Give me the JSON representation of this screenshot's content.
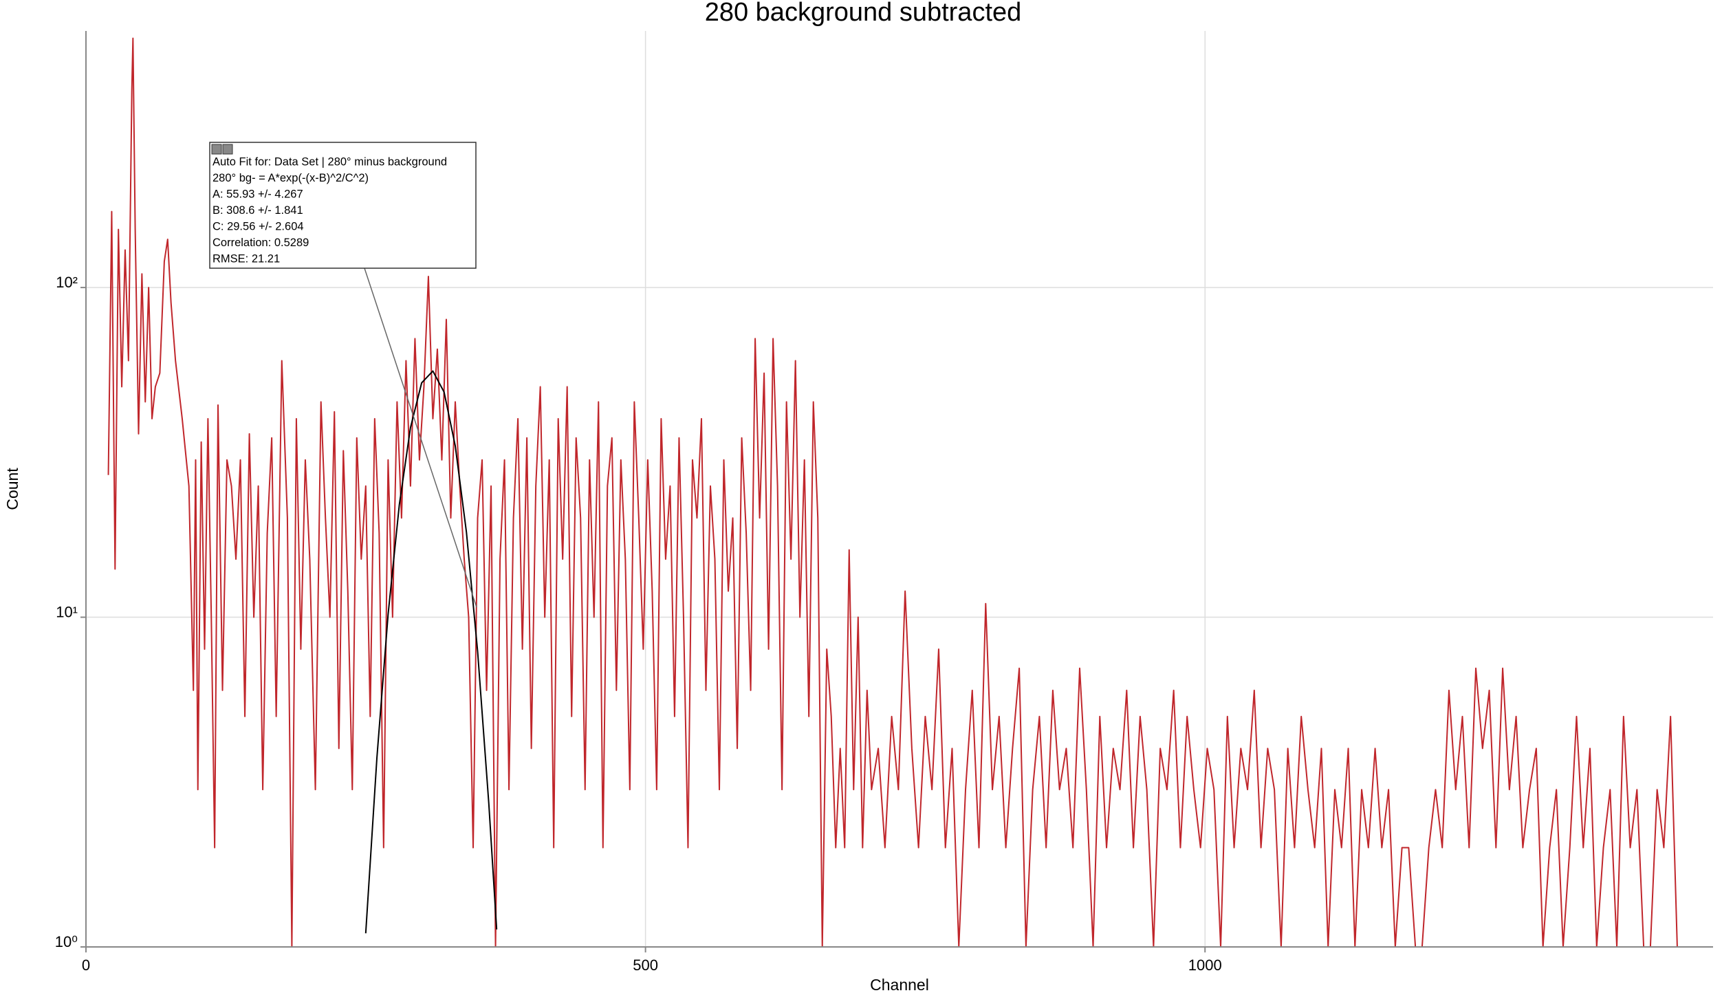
{
  "chart_data": {
    "type": "line",
    "title": "280 background subtracted",
    "x_label": "Channel",
    "y_label": "Count",
    "log_y": true,
    "grid": true,
    "xlim": [
      0,
      1454
    ],
    "xticks": [
      0,
      500,
      1000
    ],
    "ylim": [
      1,
      600
    ],
    "yticks": [
      {
        "value": 1,
        "label": "10⁰"
      },
      {
        "value": 10,
        "label": "10¹"
      },
      {
        "value": 100,
        "label": "10²"
      }
    ],
    "annotations": [
      "Auto Fit for: Data Set | 280° minus background",
      "280° bg- = A*exp(-(x-B)^2/C^2)",
      "A: 55.93 +/- 4.267",
      "B: 308.6 +/- 1.841",
      "C: 29.56 +/- 2.604",
      "Correlation: 0.5289",
      "RMSE: 21.21"
    ],
    "series": [
      {
        "color": "#c0262b",
        "x": [
          20,
          23,
          26,
          29,
          32,
          35,
          38,
          41,
          42,
          44,
          47,
          50,
          53,
          56,
          59,
          62,
          66,
          70,
          73,
          76,
          80,
          86,
          92,
          96,
          98,
          100,
          103,
          106,
          109,
          112,
          115,
          118,
          122,
          126,
          130,
          134,
          138,
          142,
          146,
          150,
          154,
          158,
          162,
          166,
          170,
          175,
          180,
          184,
          188,
          192,
          196,
          200,
          205,
          210,
          214,
          218,
          222,
          226,
          230,
          234,
          238,
          242,
          246,
          250,
          254,
          258,
          262,
          266,
          270,
          274,
          278,
          282,
          286,
          290,
          294,
          298,
          302,
          306,
          310,
          314,
          318,
          322,
          326,
          330,
          334,
          338,
          342,
          346,
          350,
          354,
          358,
          362,
          366,
          370,
          374,
          378,
          382,
          386,
          390,
          394,
          398,
          402,
          406,
          410,
          414,
          418,
          422,
          426,
          430,
          434,
          438,
          442,
          446,
          450,
          454,
          458,
          462,
          466,
          470,
          474,
          478,
          482,
          486,
          490,
          494,
          498,
          502,
          506,
          510,
          514,
          518,
          522,
          526,
          530,
          534,
          538,
          542,
          546,
          550,
          554,
          558,
          562,
          566,
          570,
          574,
          578,
          582,
          586,
          590,
          594,
          598,
          602,
          606,
          610,
          614,
          618,
          622,
          626,
          630,
          634,
          638,
          642,
          646,
          650,
          654,
          658,
          662,
          666,
          670,
          674,
          678,
          682,
          686,
          690,
          694,
          698,
          702,
          708,
          714,
          720,
          726,
          732,
          738,
          744,
          750,
          756,
          762,
          768,
          774,
          780,
          786,
          792,
          798,
          804,
          810,
          816,
          822,
          828,
          834,
          840,
          846,
          852,
          858,
          864,
          870,
          876,
          882,
          888,
          894,
          900,
          906,
          912,
          918,
          924,
          930,
          936,
          942,
          948,
          954,
          960,
          966,
          972,
          978,
          984,
          990,
          996,
          1002,
          1008,
          1014,
          1020,
          1026,
          1032,
          1038,
          1044,
          1050,
          1056,
          1062,
          1068,
          1074,
          1080,
          1086,
          1092,
          1098,
          1104,
          1110,
          1116,
          1122,
          1128,
          1134,
          1140,
          1146,
          1152,
          1158,
          1164,
          1170,
          1176,
          1182,
          1188,
          1194,
          1200,
          1206,
          1212,
          1218,
          1224,
          1230,
          1236,
          1242,
          1248,
          1254,
          1260,
          1266,
          1272,
          1278,
          1284,
          1290,
          1296,
          1302,
          1308,
          1314,
          1320,
          1326,
          1332,
          1338,
          1344,
          1350,
          1356,
          1362,
          1368,
          1374,
          1380,
          1386,
          1392,
          1398,
          1404,
          1410,
          1416,
          1422,
          1428,
          1454
        ],
        "values": [
          27,
          170,
          14,
          150,
          50,
          130,
          60,
          400,
          570,
          150,
          36,
          110,
          45,
          100,
          40,
          50,
          55,
          120,
          140,
          90,
          60,
          40,
          25,
          6,
          30,
          3,
          34,
          8,
          40,
          10,
          2,
          44,
          6,
          30,
          25,
          15,
          30,
          5,
          36,
          10,
          25,
          3,
          18,
          35,
          5,
          60,
          20,
          1,
          40,
          8,
          30,
          15,
          3,
          45,
          20,
          10,
          42,
          4,
          32,
          12,
          3,
          35,
          15,
          25,
          5,
          40,
          18,
          2,
          30,
          10,
          45,
          20,
          60,
          25,
          70,
          30,
          50,
          108,
          40,
          65,
          30,
          80,
          20,
          45,
          25,
          15,
          10,
          2,
          20,
          30,
          6,
          25,
          1,
          15,
          30,
          3,
          20,
          40,
          8,
          35,
          4,
          25,
          50,
          10,
          30,
          2,
          40,
          15,
          50,
          5,
          35,
          20,
          3,
          30,
          10,
          45,
          2,
          25,
          35,
          6,
          30,
          15,
          3,
          45,
          20,
          8,
          30,
          12,
          3,
          40,
          15,
          25,
          5,
          35,
          10,
          2,
          30,
          20,
          40,
          6,
          25,
          15,
          3,
          30,
          12,
          20,
          4,
          35,
          18,
          6,
          70,
          20,
          55,
          8,
          70,
          25,
          3,
          45,
          15,
          60,
          10,
          30,
          5,
          45,
          20,
          1,
          8,
          5,
          2,
          4,
          2,
          16,
          3,
          10,
          2,
          6,
          3,
          4,
          2,
          5,
          3,
          12,
          4,
          2,
          5,
          3,
          8,
          2,
          4,
          1,
          3,
          6,
          2,
          11,
          3,
          5,
          2,
          4,
          7,
          1,
          3,
          5,
          2,
          6,
          3,
          4,
          2,
          7,
          3,
          1,
          5,
          2,
          4,
          3,
          6,
          2,
          5,
          3,
          1,
          4,
          3,
          6,
          2,
          5,
          3,
          2,
          4,
          3,
          1,
          5,
          2,
          4,
          3,
          6,
          2,
          4,
          3,
          1,
          4,
          2,
          5,
          3,
          2,
          4,
          1,
          3,
          2,
          4,
          1,
          3,
          2,
          4,
          2,
          3,
          1,
          2,
          2,
          1,
          1,
          2,
          3,
          2,
          6,
          3,
          5,
          2,
          7,
          4,
          6,
          2,
          7,
          3,
          5,
          2,
          3,
          4,
          1,
          2,
          3,
          1,
          2,
          5,
          2,
          4,
          1,
          2,
          3,
          1,
          5,
          2,
          3,
          1,
          1,
          3,
          2,
          5,
          1,
          1,
          1
        ]
      },
      {
        "color": "#000000",
        "x": [
          250,
          260,
          270,
          280,
          290,
          300,
          310,
          320,
          330,
          340,
          350,
          360,
          367
        ],
        "values": [
          1.1,
          3.75,
          10.2,
          21.9,
          37.6,
          51.4,
          55.8,
          48.2,
          33.1,
          18.1,
          7.87,
          2.72,
          1.13
        ]
      }
    ]
  }
}
